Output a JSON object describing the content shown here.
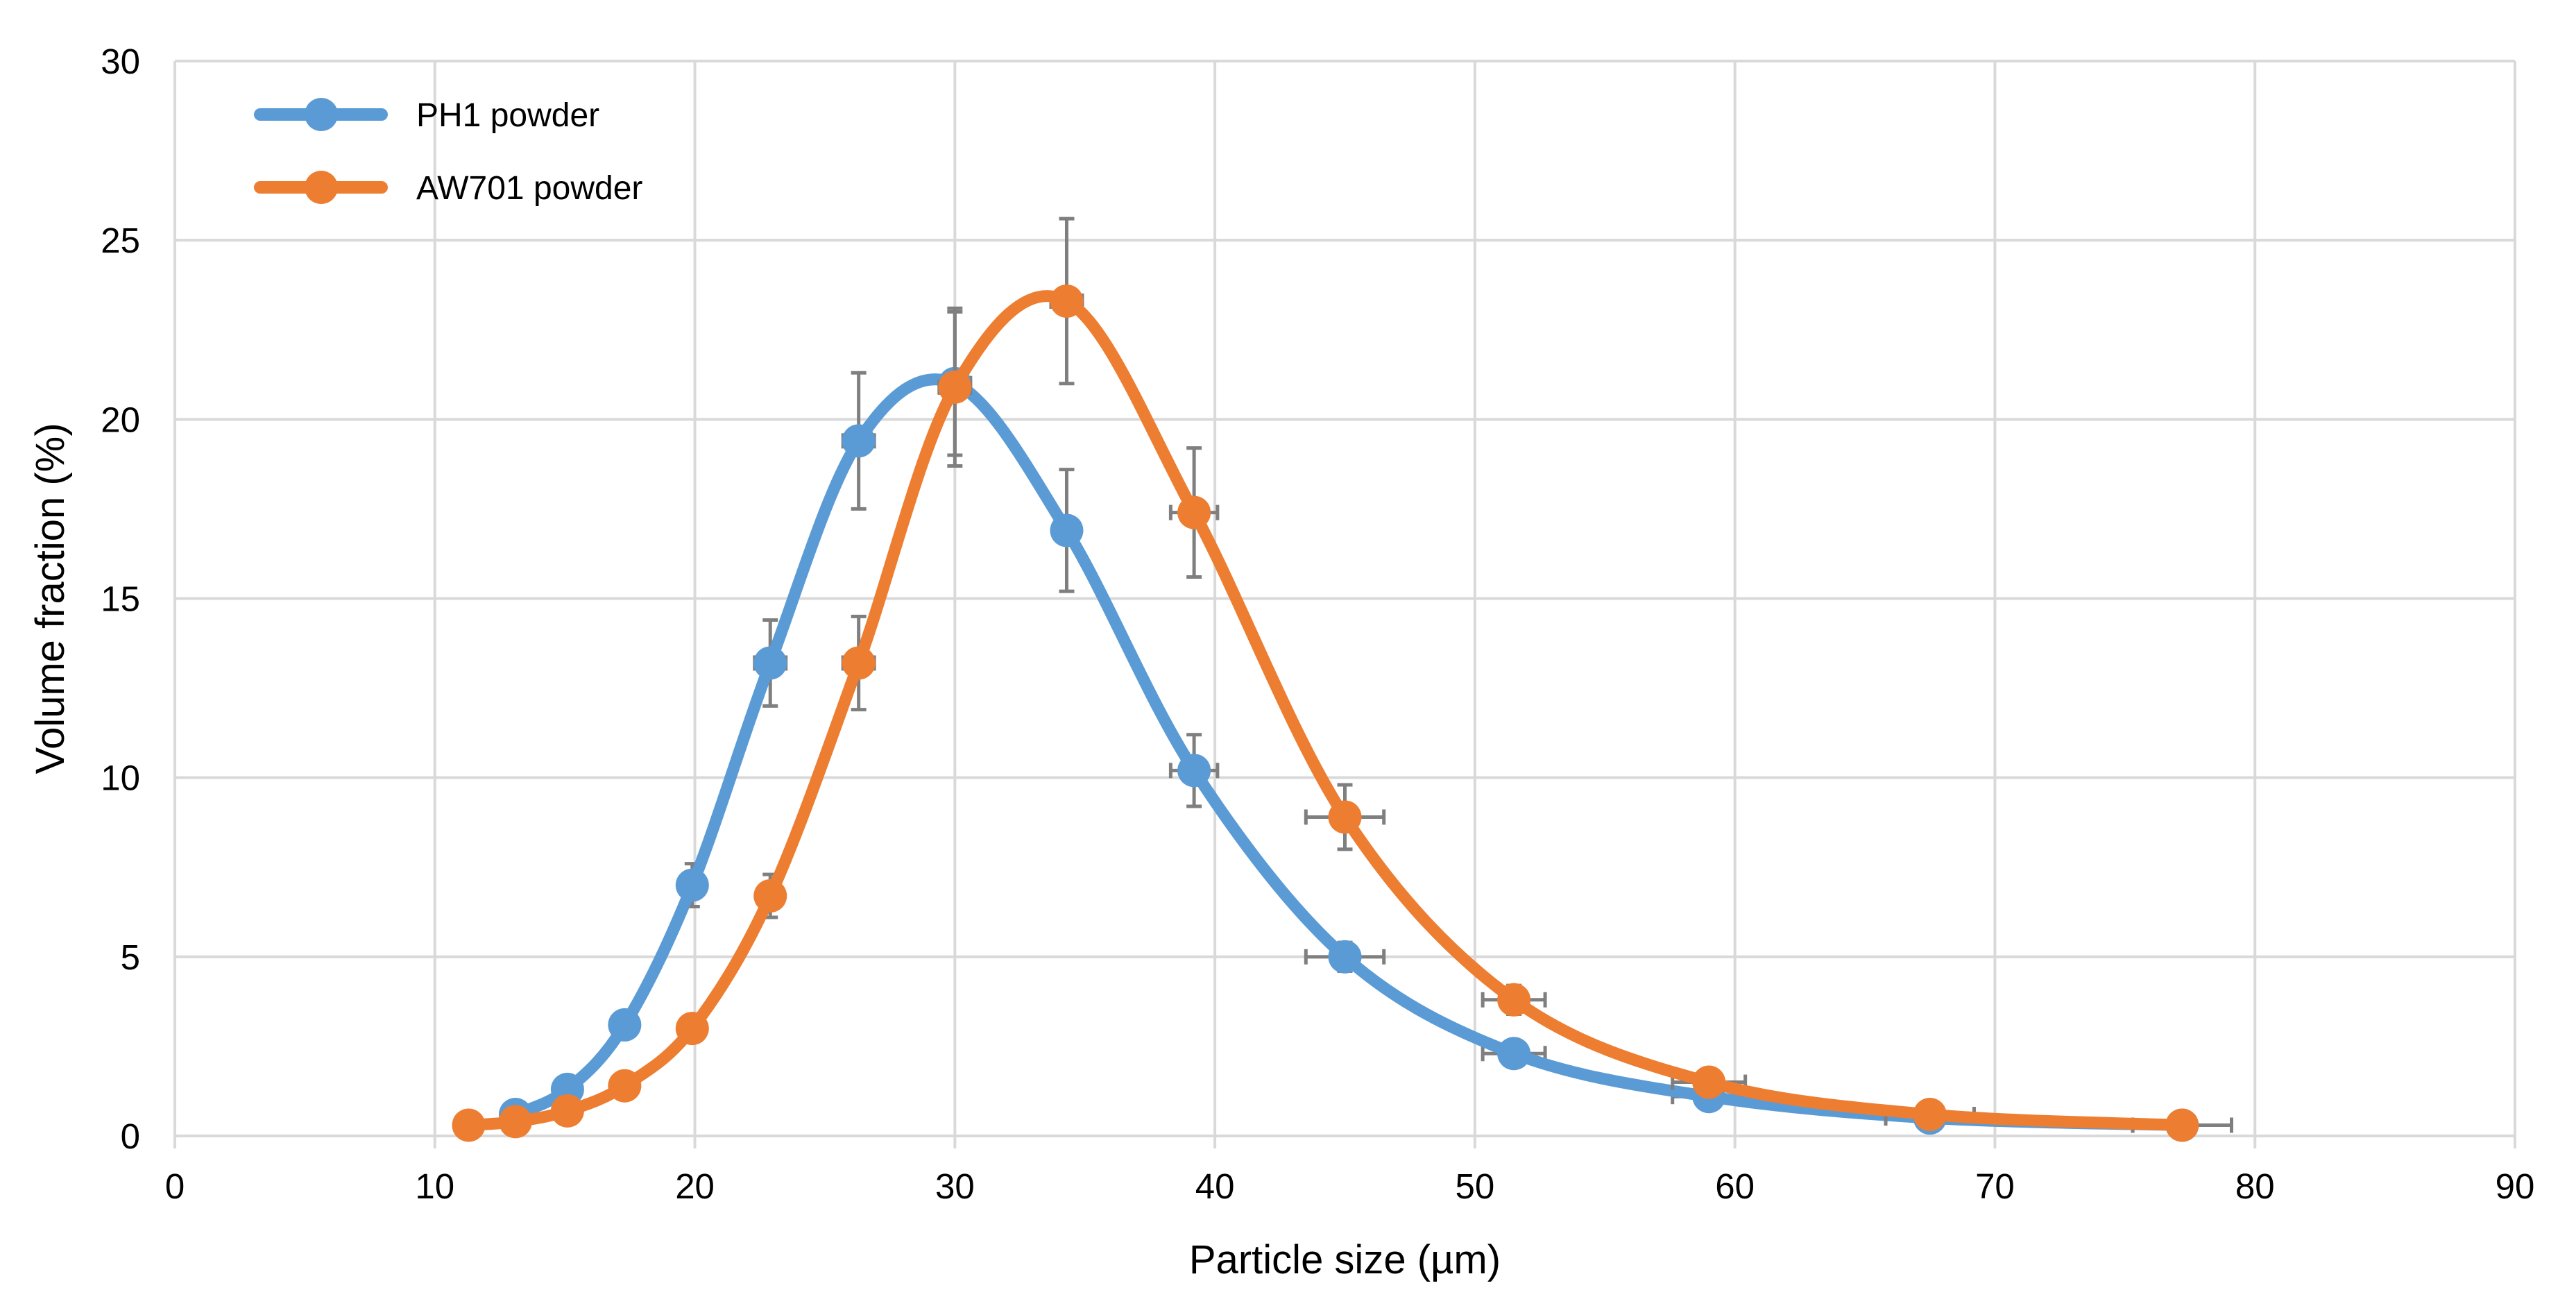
{
  "chart_data": {
    "type": "line",
    "title": "",
    "xlabel": "Particle size (µm)",
    "ylabel": "Volume fraction (%)",
    "xlim": [
      0,
      90
    ],
    "ylim": [
      0,
      30
    ],
    "xticks": [
      0,
      10,
      20,
      30,
      40,
      50,
      60,
      70,
      80,
      90
    ],
    "yticks": [
      0,
      5,
      10,
      15,
      20,
      25,
      30
    ],
    "grid": true,
    "legend_position": "top-left",
    "series": [
      {
        "name": "PH1 powder",
        "color": "#5B9BD5",
        "x": [
          13.1,
          15.1,
          17.3,
          19.9,
          22.9,
          26.3,
          30.0,
          34.3,
          39.2,
          45.0,
          51.5,
          59.0,
          67.5,
          77.2
        ],
        "y": [
          0.6,
          1.3,
          3.1,
          7.0,
          13.2,
          19.4,
          21.0,
          16.9,
          10.2,
          5.0,
          2.3,
          1.1,
          0.5,
          0.3
        ],
        "yerr": [
          0.1,
          0.2,
          0.2,
          0.6,
          1.2,
          1.9,
          2.0,
          1.7,
          1.0,
          0.4,
          0.3,
          0.3,
          0.2,
          0.1
        ],
        "xerr": [
          0.3,
          0.4,
          0.4,
          0.5,
          0.6,
          0.6,
          0.6,
          0.5,
          0.9,
          1.5,
          1.2,
          1.4,
          1.7,
          1.9
        ]
      },
      {
        "name": "AW701 powder",
        "color": "#ED7D31",
        "x": [
          11.3,
          13.1,
          15.1,
          17.3,
          19.9,
          22.9,
          26.3,
          30.0,
          34.3,
          39.2,
          45.0,
          51.5,
          59.0,
          67.5,
          77.2
        ],
        "y": [
          0.3,
          0.4,
          0.7,
          1.4,
          3.0,
          6.7,
          13.2,
          20.9,
          23.3,
          17.4,
          8.9,
          3.8,
          1.5,
          0.6,
          0.3
        ],
        "yerr": [
          0.1,
          0.1,
          0.1,
          0.2,
          0.3,
          0.6,
          1.3,
          2.2,
          2.3,
          1.8,
          0.9,
          0.4,
          0.3,
          0.2,
          0.1
        ],
        "xerr": [
          0.3,
          0.3,
          0.3,
          0.4,
          0.4,
          0.5,
          0.6,
          0.6,
          0.6,
          0.9,
          1.5,
          1.2,
          1.4,
          1.7,
          1.9
        ]
      }
    ]
  }
}
